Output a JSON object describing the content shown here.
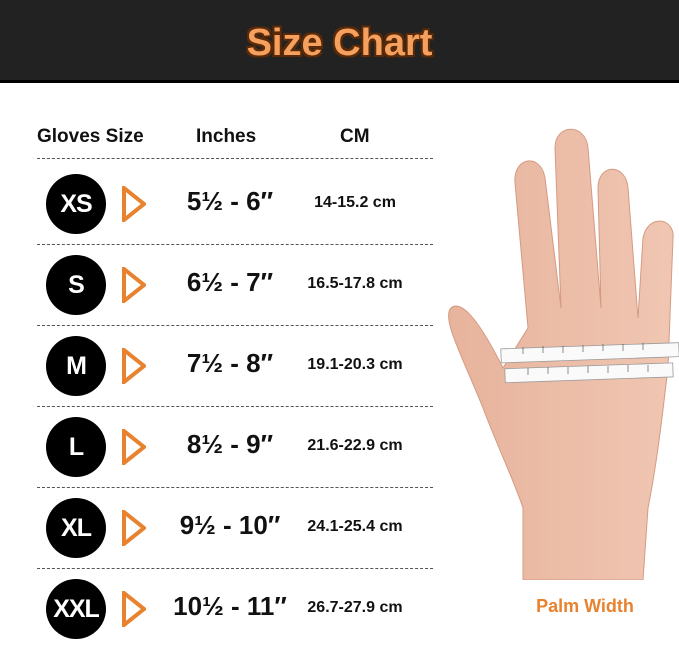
{
  "title": "Size Chart",
  "columns": [
    "Gloves Size",
    "Inches",
    "CM"
  ],
  "rows": [
    {
      "size": "XS",
      "inches": "5½ - 6″",
      "cm": "14-15.2 cm"
    },
    {
      "size": "S",
      "inches": "6½ - 7″",
      "cm": "16.5-17.8 cm"
    },
    {
      "size": "M",
      "inches": "7½ - 8″",
      "cm": "19.1-20.3 cm"
    },
    {
      "size": "L",
      "inches": "8½ - 9″",
      "cm": "21.6-22.9 cm"
    },
    {
      "size": "XL",
      "inches": "9½ - 10″",
      "cm": "24.1-25.4 cm"
    },
    {
      "size": "XXL",
      "inches": "10½ - 11″",
      "cm": "26.7-27.9 cm"
    }
  ],
  "image_label": "Palm Width",
  "colors": {
    "accent": "#f5a05e",
    "arrow": "#e8822e",
    "header_bg": "#222222"
  }
}
